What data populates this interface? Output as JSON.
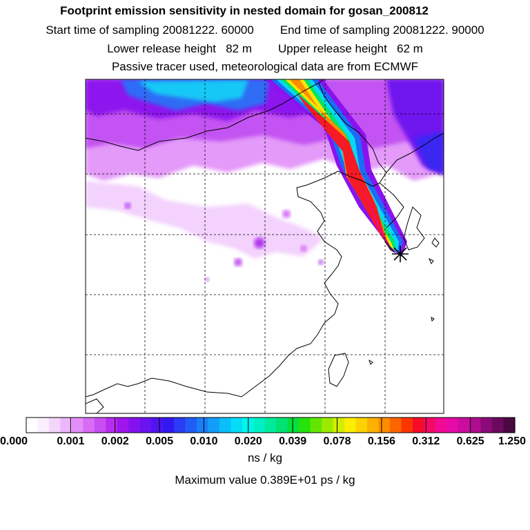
{
  "header": {
    "title": "Footprint emission sensitivity in nested domain for gosan_200812",
    "start_label": "Start time of sampling",
    "start_value": "20081222. 60000",
    "end_label": "End time of sampling",
    "end_value": "20081222. 90000",
    "lower_label": "Lower release height",
    "lower_value": "82 m",
    "upper_label": "Upper release height",
    "upper_value": "62 m",
    "note": "Passive tracer used, meteorological data are from ECMWF"
  },
  "colorbar": {
    "ticks": [
      "0.000",
      "0.001",
      "0.002",
      "0.005",
      "0.010",
      "0.020",
      "0.039",
      "0.078",
      "0.156",
      "0.312",
      "0.625",
      "1.250"
    ],
    "colors": [
      "#ffffff",
      "#fbeefe",
      "#f4d6fd",
      "#ecb6fb",
      "#e28ef8",
      "#d86cf5",
      "#c84ef2",
      "#b72cef",
      "#a015ee",
      "#8512ee",
      "#6a12ef",
      "#5014f0",
      "#3318f2",
      "#2a3cf4",
      "#225cf6",
      "#1a7ef7",
      "#129ef8",
      "#0bbdf8",
      "#04dcf8",
      "#00f4ec",
      "#00f0c4",
      "#00ea9c",
      "#00e272",
      "#06de3c",
      "#26e20a",
      "#62e600",
      "#9cea00",
      "#d2ee00",
      "#fcee00",
      "#fcd200",
      "#fcb000",
      "#fc8c00",
      "#fc6400",
      "#fa3600",
      "#f60c28",
      "#f40a66",
      "#f00a94",
      "#e60aa8",
      "#cc0c9e",
      "#b00c90",
      "#8c0a78",
      "#6a0a5c",
      "#4a0840"
    ],
    "units": "ns / kg"
  },
  "max_value": "Maximum value  0.389E+01 ps / kg",
  "map": {
    "icons": [
      "release-site-star-icon"
    ]
  }
}
